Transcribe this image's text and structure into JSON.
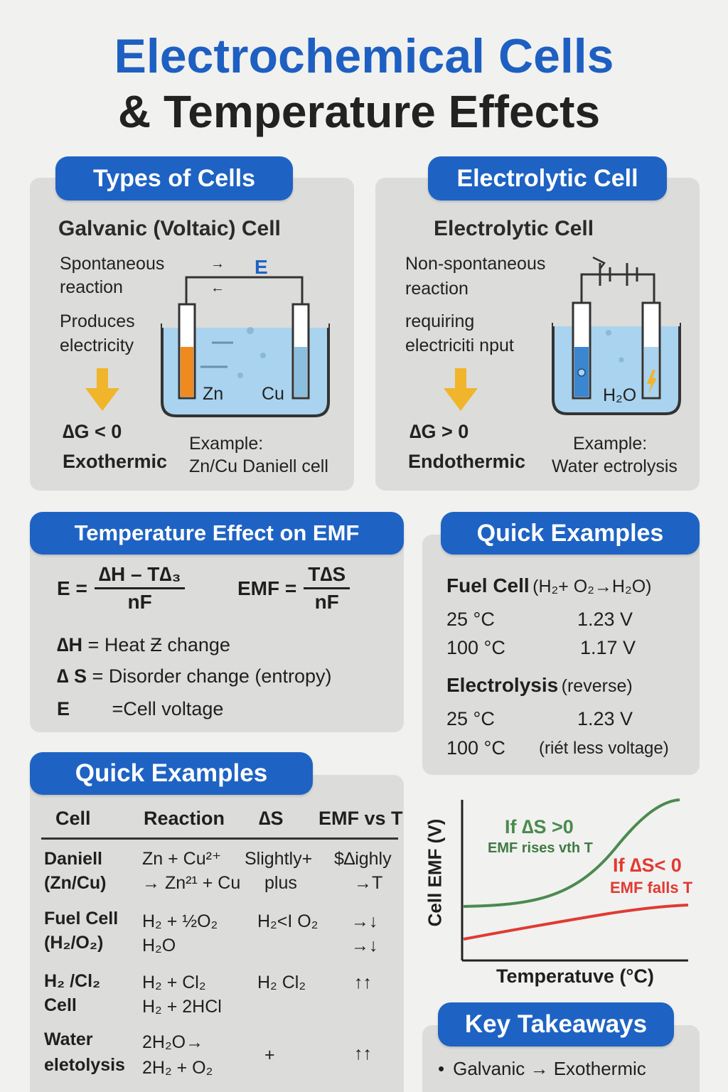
{
  "title": {
    "line1": "Electrochemical Cells",
    "line2": "& Temperature Effects"
  },
  "types_of_cells": {
    "pill": "Types of Cells",
    "heading": "Galvanic (Voltaic)  Cell",
    "desc1a": "Spontaneous",
    "desc1b": "reaction",
    "desc2a": "Produces",
    "desc2b": "electricity",
    "delta_g": "∆G < 0",
    "thermo": "Exothermic",
    "example_label": "Example:",
    "example_value": "Zn/Cu Daniell cell",
    "diagram": {
      "arrow1": "→",
      "arrow2": "←",
      "e_label": "E",
      "left_electrode": "Zn",
      "right_electrode": "Cu"
    }
  },
  "electrolytic_cell": {
    "pill": "Electrolytic Cell",
    "heading": "Electrolytic Cell",
    "desc1a": "Non-spontaneous",
    "desc1b": "reaction",
    "desc2a": "requiring",
    "desc2b": "electriciti nput",
    "delta_g": "∆G > 0",
    "thermo": "Endothermic",
    "example_label": "Example:",
    "example_value": "Water ectrolysis",
    "diagram": {
      "solution": "H₂O"
    }
  },
  "temperature_effect": {
    "pill": "Temperature Effect on EMF",
    "eq1_lhs": "E =",
    "eq1_num": "∆H – T∆₃",
    "eq1_den": "nF",
    "eq2_lhs": "EMF =",
    "eq2_num": "T∆S",
    "eq2_den": "nF",
    "defs": [
      {
        "sym": "∆H",
        "text": "= Heat Ƶ change"
      },
      {
        "sym": "∆ S",
        "text": "= Disorder change   (entropy)"
      },
      {
        "sym": "E",
        "text": "=Cell voltage"
      }
    ]
  },
  "quick_examples_right": {
    "pill": "Quick Examples",
    "fuel_title": "Fuel Cell",
    "fuel_reaction": "(H₂+ O₂→H₂O)",
    "fuel_rows": [
      {
        "temp": "25 °C",
        "value": "1.23 V"
      },
      {
        "temp": "100 °C",
        "value": "1.17 V"
      }
    ],
    "electro_title": "Electrolysis",
    "electro_note": "(reverse)",
    "electro_rows": [
      {
        "temp": "25 °C",
        "value": "1.23 V"
      },
      {
        "temp": "100 °C",
        "value": "(riét less voltage)"
      }
    ]
  },
  "quick_examples_table": {
    "pill": "Quick Examples",
    "headers": [
      "Cell",
      "Reaction",
      "∆S",
      "EMF vs T"
    ],
    "rows": [
      {
        "cell1": "Daniell",
        "cell2": "(Zn/Cu)",
        "r1": "Zn + Cu²⁺",
        "r2": "→ Zn²¹ + Cu",
        "s1": "Slightly+",
        "s2": "plus",
        "e1": "$∆ighly",
        "e2": "→T"
      },
      {
        "cell1": "Fuel Cell",
        "cell2": "(H₂/O₂)",
        "r1": "H₂ + ½O₂",
        "r2": "H₂O",
        "s1": "H₂<I O₂",
        "s2": "",
        "e1": "→↓",
        "e2": "→↓"
      },
      {
        "cell1": "H₂ /Cl₂",
        "cell2": "Cell",
        "r1": "H₂  + Cl₂",
        "r2": "H₂  + 2HCl",
        "s1": "H₂  Cl₂",
        "s2": "",
        "e1": "↑↑",
        "e2": ""
      },
      {
        "cell1": "Water",
        "cell2": "eletolysis",
        "r1": "2H₂O→",
        "r2": "2H₂ + O₂",
        "s1": "+",
        "s2": "",
        "e1": "↑↑",
        "e2": ""
      }
    ]
  },
  "chart": {
    "ylabel": "Cell EMF (V)",
    "xlabel": "Temperatuve (°C)",
    "green_label1": "If ∆S >0",
    "green_label2": "EMF rises ᴠth T",
    "red_label1": "If ∆S< 0",
    "red_label2": "EMF falls T",
    "green_color": "#4a8a4f",
    "red_color": "#e03a33"
  },
  "key_takeaways": {
    "pill": "Key Takeaways",
    "items": [
      "Galvanic → Exothermic"
    ]
  },
  "colors": {
    "accent": "#1e63c3",
    "panel": "#dcdcda",
    "arrow_yellow": "#f0b52a",
    "solution_blue": "#a9d3ee",
    "zn_orange": "#f08a1e"
  }
}
